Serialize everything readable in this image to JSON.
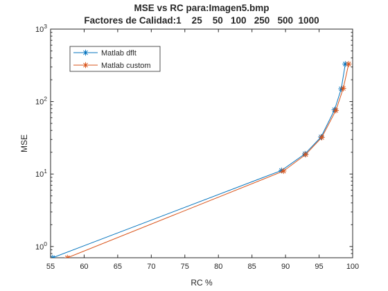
{
  "chart_data": {
    "type": "line",
    "title": "MSE vs RC para:Imagen5.bmp",
    "subtitle": "Factores de Calidad:1    25    50   100   250   500  1000",
    "xlabel": "RC %",
    "ylabel": "MSE",
    "xlim": [
      55,
      100
    ],
    "ylim": [
      0.7,
      1000
    ],
    "yscale": "log",
    "grid": false,
    "legend_position": "top-left",
    "x_ticks": [
      55,
      60,
      65,
      70,
      75,
      80,
      85,
      90,
      95,
      100
    ],
    "x_tick_labels": [
      "55",
      "60",
      "65",
      "70",
      "75",
      "80",
      "85",
      "90",
      "95",
      "100"
    ],
    "y_ticks": [
      1,
      10,
      100,
      1000
    ],
    "y_tick_labels": [
      {
        "base": "10",
        "exp": "0"
      },
      {
        "base": "10",
        "exp": "1"
      },
      {
        "base": "10",
        "exp": "2"
      },
      {
        "base": "10",
        "exp": "3"
      }
    ],
    "series": [
      {
        "name": "Matlab dflt",
        "color": "#0072BD",
        "marker": "asterisk",
        "x": [
          55.3,
          89.4,
          92.9,
          95.3,
          97.3,
          98.3,
          98.9
        ],
        "y": [
          0.7,
          11.2,
          19.0,
          32.5,
          77.0,
          150.0,
          330.0
        ]
      },
      {
        "name": "Matlab custom",
        "color": "#D95319",
        "marker": "asterisk",
        "x": [
          57.5,
          89.7,
          93.0,
          95.4,
          97.5,
          98.6,
          99.4
        ],
        "y": [
          0.7,
          11.0,
          18.6,
          32.0,
          75.5,
          152.0,
          330.0
        ]
      }
    ]
  }
}
